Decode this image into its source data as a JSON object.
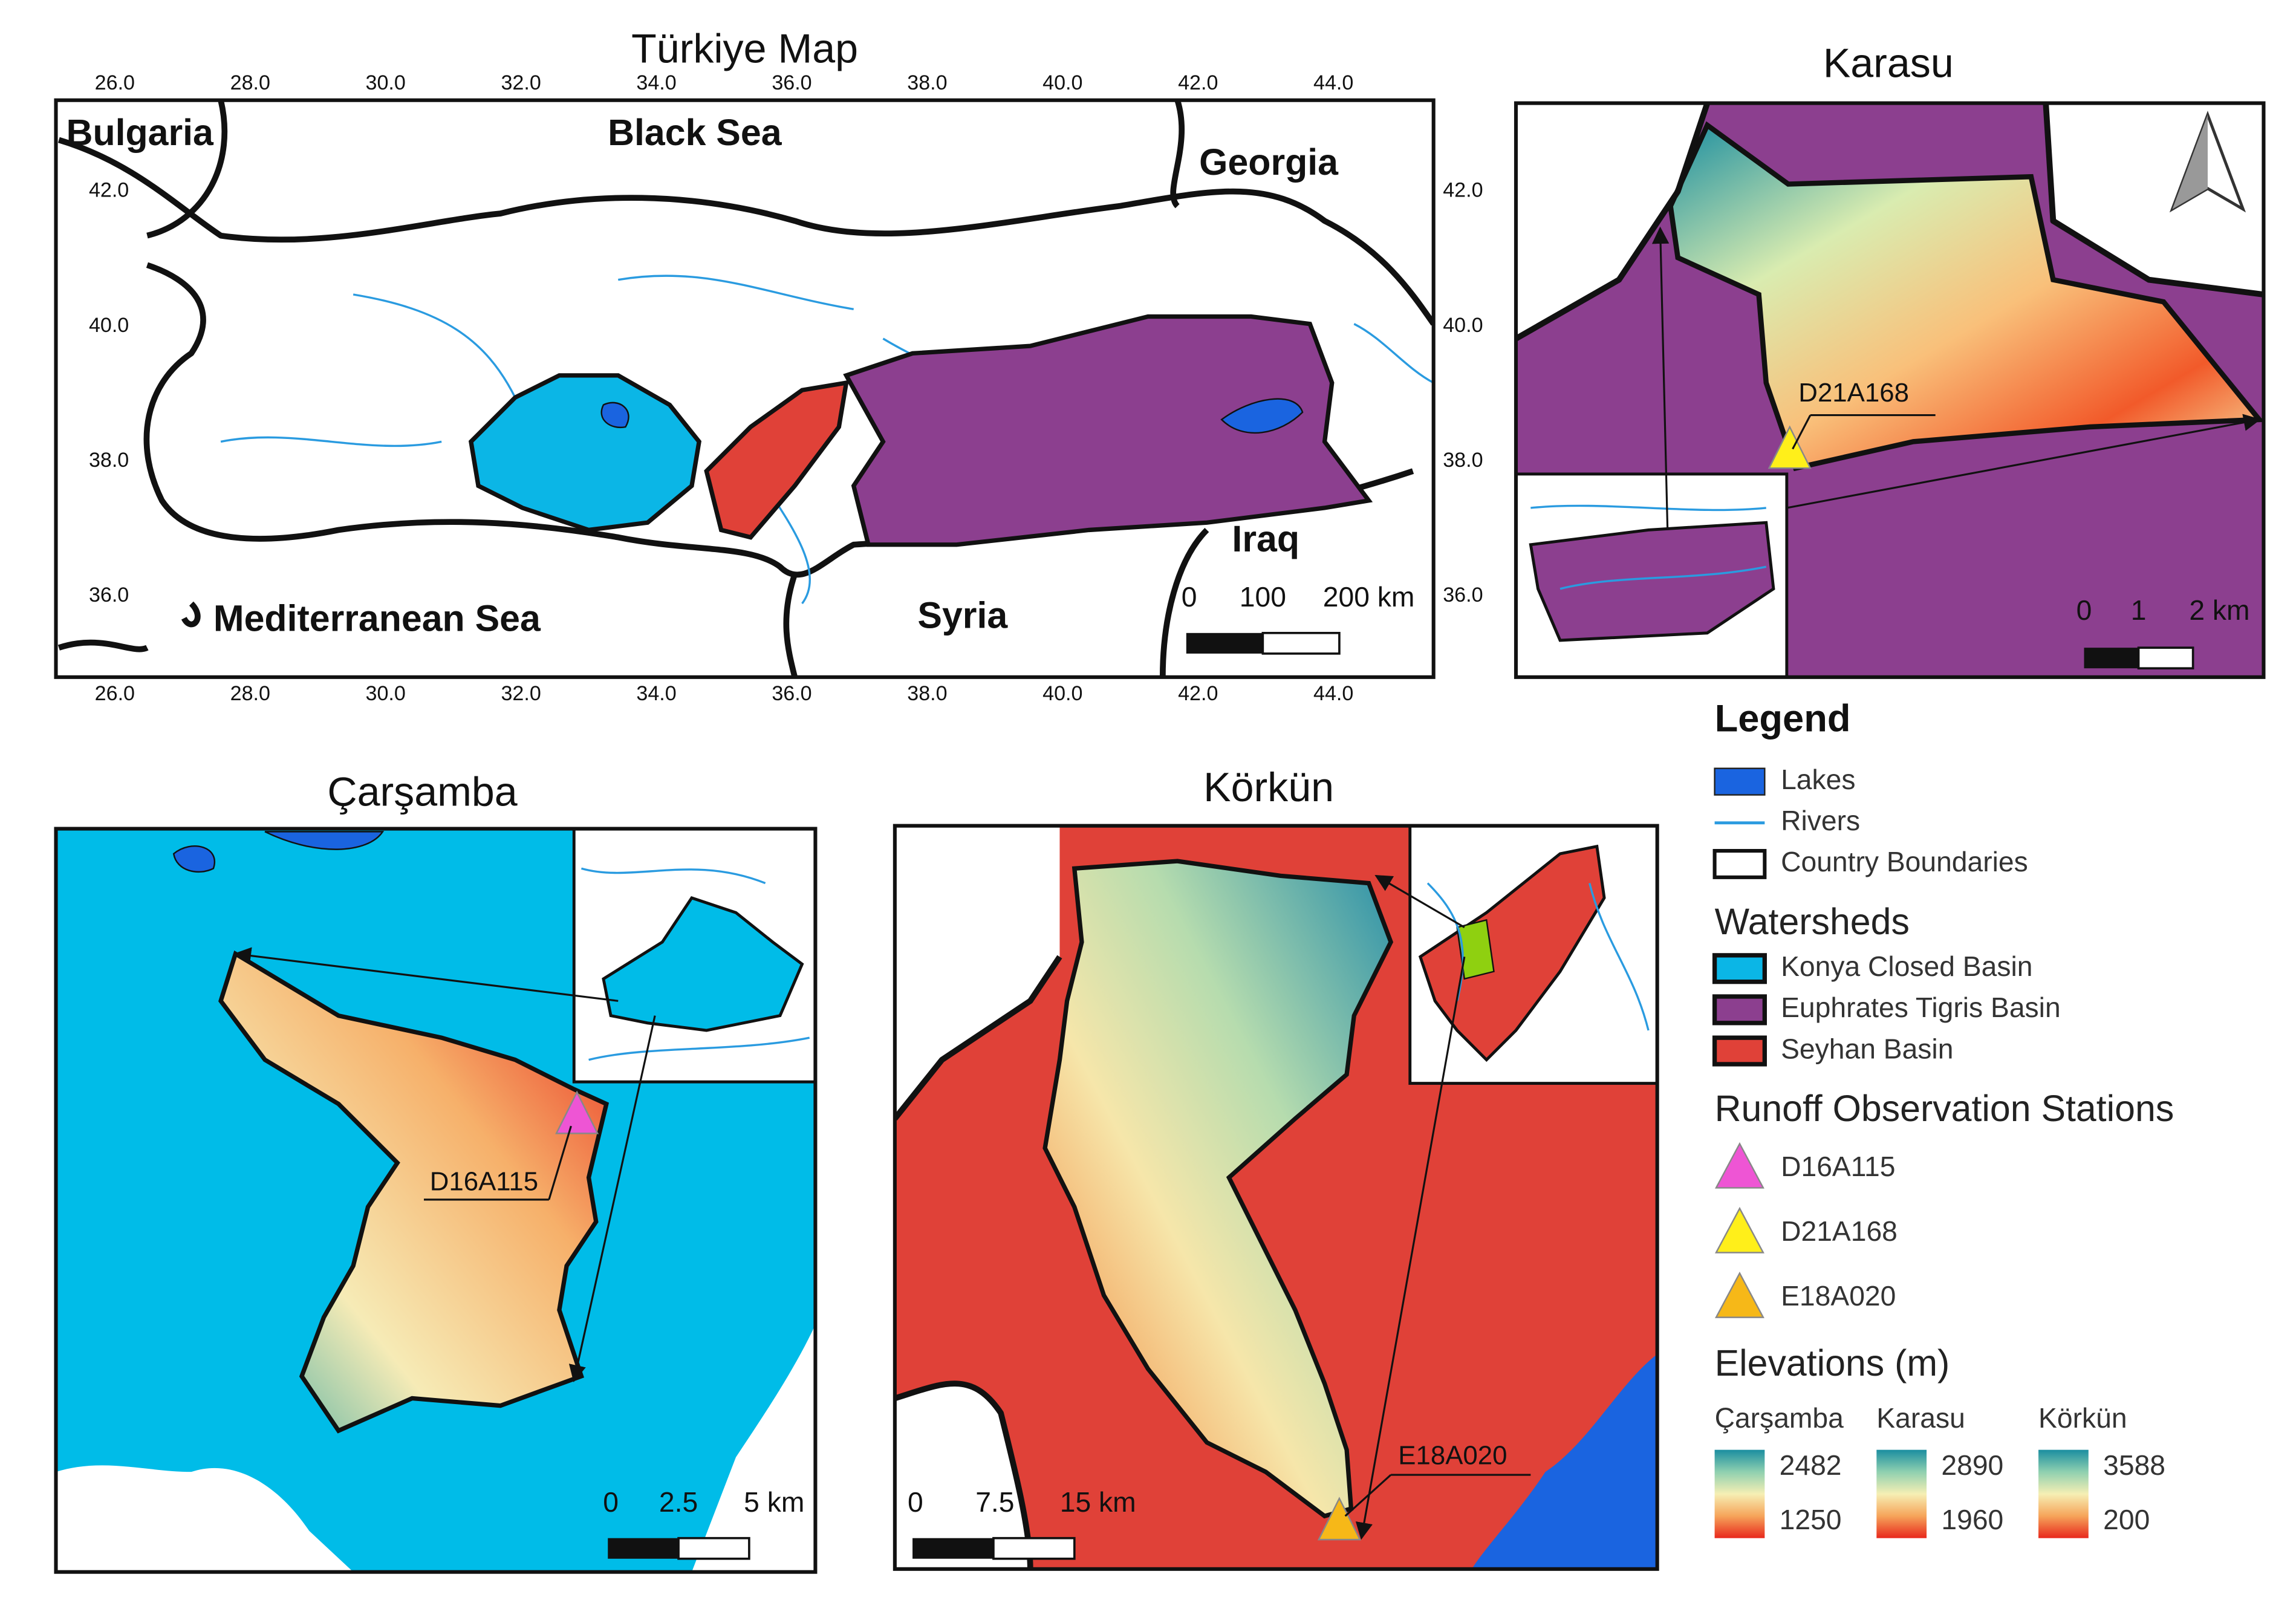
{
  "turkiye_map": {
    "title": "Türkiye Map",
    "x_ticks": [
      "26.0",
      "28.0",
      "30.0",
      "32.0",
      "34.0",
      "36.0",
      "38.0",
      "40.0",
      "42.0",
      "44.0"
    ],
    "y_ticks": [
      "42.0",
      "40.0",
      "38.0",
      "36.0"
    ],
    "labels": {
      "bulgaria": "Bulgaria",
      "black_sea": "Black Sea",
      "georgia": "Georgia",
      "iraq": "Iraq",
      "mediterranean": "Mediterranean Sea",
      "syria": "Syria"
    },
    "scale": [
      "0",
      "100",
      "200 km"
    ]
  },
  "karasu": {
    "title": "Karasu",
    "station": "D21A168",
    "scale": [
      "0",
      "1",
      "2 km"
    ]
  },
  "carsamba": {
    "title": "Çarşamba",
    "station": "D16A115",
    "scale": [
      "0",
      "2.5",
      "5 km"
    ]
  },
  "korkun": {
    "title": "Körkün",
    "station": "E18A020",
    "scale": [
      "0",
      "7.5",
      "15 km"
    ]
  },
  "legend": {
    "title": "Legend",
    "items": [
      "Lakes",
      "Rivers",
      "Country Boundaries"
    ],
    "watersheds_title": "Watersheds",
    "watersheds": [
      "Konya Closed Basin",
      "Euphrates Tigris Basin",
      "Seyhan Basin"
    ],
    "stations_title": "Runoff Observation Stations",
    "stations": [
      "D16A115",
      "D21A168",
      "E18A020"
    ],
    "elevations_title": "Elevations (m)",
    "elevations": [
      {
        "name": "Çarşamba",
        "max": 2482,
        "min": 1250
      },
      {
        "name": "Karasu",
        "max": 2890,
        "min": 1960
      },
      {
        "name": "Körkün",
        "max": 3588,
        "min": 200
      }
    ]
  }
}
